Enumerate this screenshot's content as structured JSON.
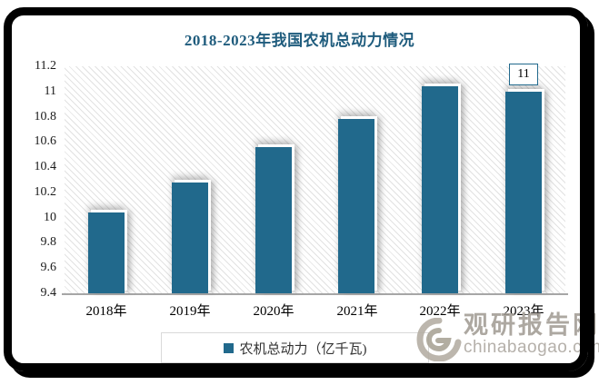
{
  "title": "2018-2023年我国农机总动力情况",
  "chart_data": {
    "type": "bar",
    "title": "2018-2023年我国农机总动力情况",
    "categories": [
      "2018年",
      "2019年",
      "2020年",
      "2021年",
      "2022年",
      "2023年"
    ],
    "series": [
      {
        "name": "农机总动力（亿千瓦)",
        "values": [
          10.04,
          10.28,
          10.56,
          10.78,
          11.04,
          11
        ]
      }
    ],
    "xlabel": "",
    "ylabel": "",
    "ylim": [
      9.4,
      11.2
    ],
    "yticks": [
      "11.2",
      "11",
      "10.8",
      "10.6",
      "10.4",
      "10.2",
      "10",
      "9.8",
      "9.6",
      "9.4"
    ],
    "grid": false,
    "plot_background": "diagonal-hatch",
    "legend_position": "bottom",
    "data_labels": [
      {
        "category_index": 5,
        "text": "11"
      }
    ]
  },
  "legend": {
    "label": "农机总动力（亿千瓦)"
  },
  "watermark": {
    "name": "观研报告网",
    "domain": "chinabaogao.com",
    "logo": "swirl-g-icon"
  },
  "colors": {
    "bar": "#21698C",
    "title": "#1F5C7D",
    "axis_line": "#A6A6A6",
    "legend_border": "#D9D9D9",
    "watermark_text": "#A29D95",
    "frame": "#000000"
  }
}
